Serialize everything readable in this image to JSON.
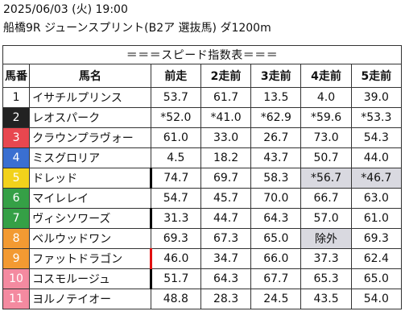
{
  "header": {
    "date_line": "2025/06/03 (火) 19:00",
    "race_line": "船橋9R ジューンスプリント(B2ア 選抜馬) ダ1200m"
  },
  "table": {
    "title": "＝＝＝スピード指数表＝＝＝",
    "columns": [
      "馬番",
      "馬名",
      "前走",
      "2走前",
      "3走前",
      "4走前",
      "5走前"
    ],
    "rows": [
      {
        "num": "1",
        "name": "イサチルプリンス",
        "vals": [
          "53.7",
          "61.7",
          "13.5",
          "4.0",
          "39.0"
        ]
      },
      {
        "num": "2",
        "name": "レオスパーク",
        "vals": [
          "*52.0",
          "*41.0",
          "*62.9",
          "*59.6",
          "*53.3"
        ]
      },
      {
        "num": "3",
        "name": "クラウンプラヴォー",
        "vals": [
          "61.0",
          "33.0",
          "26.7",
          "73.0",
          "54.3"
        ]
      },
      {
        "num": "4",
        "name": "ミスグロリア",
        "vals": [
          "4.5",
          "18.2",
          "43.7",
          "50.7",
          "44.0"
        ]
      },
      {
        "num": "5",
        "name": "ドレッド",
        "vals": [
          "74.7",
          "69.7",
          "58.3",
          "*56.7",
          "*46.7"
        ]
      },
      {
        "num": "6",
        "name": "マイレレイ",
        "vals": [
          "54.7",
          "45.7",
          "70.0",
          "66.7",
          "63.0"
        ]
      },
      {
        "num": "7",
        "name": "ヴィシソワーズ",
        "vals": [
          "31.3",
          "44.7",
          "64.3",
          "57.0",
          "61.0"
        ]
      },
      {
        "num": "8",
        "name": "ベルウッドワン",
        "vals": [
          "69.3",
          "67.3",
          "65.0",
          "除外",
          "69.3"
        ]
      },
      {
        "num": "9",
        "name": "ファットドラゴン",
        "vals": [
          "46.0",
          "34.7",
          "66.0",
          "37.3",
          "62.4"
        ]
      },
      {
        "num": "10",
        "name": "コスモルージュ",
        "vals": [
          "51.7",
          "64.3",
          "67.7",
          "65.3",
          "65.0"
        ]
      },
      {
        "num": "11",
        "name": "ヨルノテイオー",
        "vals": [
          "48.8",
          "28.3",
          "24.5",
          "43.5",
          "54.0"
        ]
      }
    ]
  },
  "colors": {
    "num_bg": [
      "#ffffff",
      "#222222",
      "#e8474f",
      "#3a6fd1",
      "#f2d21b",
      "#35a046",
      "#35a046",
      "#f39a32",
      "#f39a32",
      "#f48aa0",
      "#f48aa0"
    ],
    "num_fg": [
      "#111111",
      "#ffffff",
      "#ffffff",
      "#ffffff",
      "#ffffff",
      "#ffffff",
      "#ffffff",
      "#ffffff",
      "#ffffff",
      "#ffffff",
      "#ffffff"
    ]
  }
}
